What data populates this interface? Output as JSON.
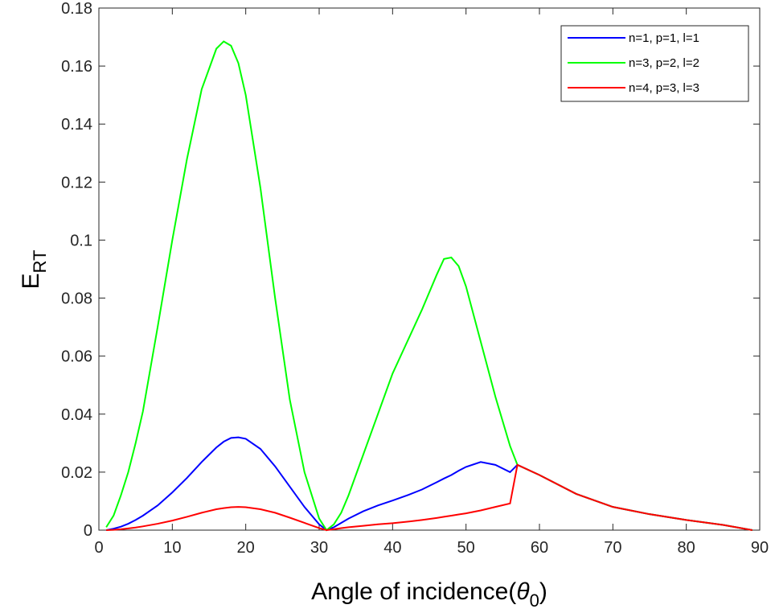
{
  "chart_data": {
    "type": "line",
    "ylabel": {
      "main": "E",
      "sub": "RT"
    },
    "xlabel": {
      "main": "Angle of incidence(",
      "symbol": "θ",
      "sub": "0",
      "end": ")"
    },
    "x": [
      1,
      2,
      3,
      4,
      5,
      6,
      8,
      10,
      12,
      14,
      16,
      17,
      18,
      19,
      20,
      22,
      24,
      26,
      28,
      30,
      31,
      32,
      33,
      34,
      36,
      38,
      40,
      42,
      44,
      46,
      47,
      48,
      49,
      50,
      52,
      54,
      56,
      57,
      60,
      65,
      70,
      75,
      80,
      85,
      89
    ],
    "series": [
      {
        "name": "n=1, p=1, l=1",
        "color": "#0000ff",
        "values": [
          0,
          0.0005,
          0.0012,
          0.0022,
          0.0035,
          0.005,
          0.0085,
          0.013,
          0.018,
          0.0235,
          0.0285,
          0.0305,
          0.0318,
          0.032,
          0.0315,
          0.028,
          0.022,
          0.015,
          0.008,
          0.002,
          0,
          0.001,
          0.0025,
          0.004,
          0.0065,
          0.0085,
          0.0102,
          0.012,
          0.014,
          0.0165,
          0.0178,
          0.019,
          0.0205,
          0.0218,
          0.0235,
          0.0225,
          0.02,
          0.0225,
          0.019,
          0.0125,
          0.008,
          0.0055,
          0.0035,
          0.0018,
          0
        ]
      },
      {
        "name": "n=3, p=2, l=2",
        "color": "#00ff00",
        "values": [
          0.001,
          0.005,
          0.012,
          0.02,
          0.03,
          0.041,
          0.07,
          0.1,
          0.128,
          0.152,
          0.166,
          0.1685,
          0.167,
          0.161,
          0.15,
          0.118,
          0.08,
          0.045,
          0.02,
          0.004,
          0,
          0.002,
          0.006,
          0.012,
          0.026,
          0.04,
          0.054,
          0.065,
          0.076,
          0.088,
          0.0935,
          0.094,
          0.091,
          0.084,
          0.065,
          0.046,
          0.029,
          0.0225,
          0.019,
          0.0125,
          0.008,
          0.0055,
          0.0035,
          0.0018,
          0
        ]
      },
      {
        "name": "n=4, p=3, l=3",
        "color": "#ff0000",
        "values": [
          0,
          0.0001,
          0.0003,
          0.0006,
          0.0009,
          0.0013,
          0.0022,
          0.0033,
          0.0046,
          0.006,
          0.0072,
          0.0076,
          0.0079,
          0.008,
          0.0079,
          0.0072,
          0.006,
          0.0043,
          0.0025,
          0.0007,
          0,
          0.0003,
          0.0007,
          0.001,
          0.0015,
          0.002,
          0.0024,
          0.0029,
          0.0035,
          0.0042,
          0.0046,
          0.005,
          0.0054,
          0.0058,
          0.0068,
          0.008,
          0.0092,
          0.0225,
          0.019,
          0.0125,
          0.008,
          0.0055,
          0.0035,
          0.0018,
          0
        ]
      }
    ],
    "xlim": [
      0,
      90
    ],
    "xticks": [
      0,
      10,
      20,
      30,
      40,
      50,
      60,
      70,
      80,
      90
    ],
    "ylim": [
      0,
      0.18
    ],
    "yticks": [
      0,
      0.02,
      0.04,
      0.06,
      0.08,
      0.1,
      0.12,
      0.14,
      0.16,
      0.18
    ],
    "grid": false,
    "legend": "northeast"
  }
}
